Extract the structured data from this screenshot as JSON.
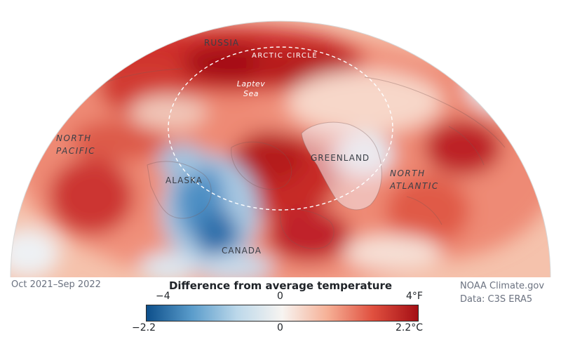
{
  "map": {
    "labels": {
      "russia": "RUSSIA",
      "arctic_circle": "ARCTIC CIRCLE",
      "laptev_sea": "Laptev Sea",
      "north_pacific": "NORTH PACIFIC",
      "greenland": "GREENLAND",
      "north_atlantic": "NORTH ATLANTIC",
      "alaska": "ALASKA",
      "canada": "CANADA"
    },
    "colors": {
      "warm_max": "#a50f15",
      "warm_mid": "#e0503f",
      "warm_low": "#f6b096",
      "neutral": "#f7f4f1",
      "cool_low": "#bcd8ea",
      "cool_mid": "#5a9ccb",
      "cool_max": "#0d4f8b"
    }
  },
  "footer": {
    "period": "Oct 2021–Sep 2022",
    "credit_1": "NOAA Climate.gov",
    "credit_2": "Data: C3S ERA5"
  },
  "legend": {
    "title": "Difference from average temperature",
    "fahrenheit": {
      "min": "−4",
      "mid": "0",
      "max": "4°F"
    },
    "celsius": {
      "min": "−2.2",
      "mid": "0",
      "max": "2.2°C"
    }
  }
}
